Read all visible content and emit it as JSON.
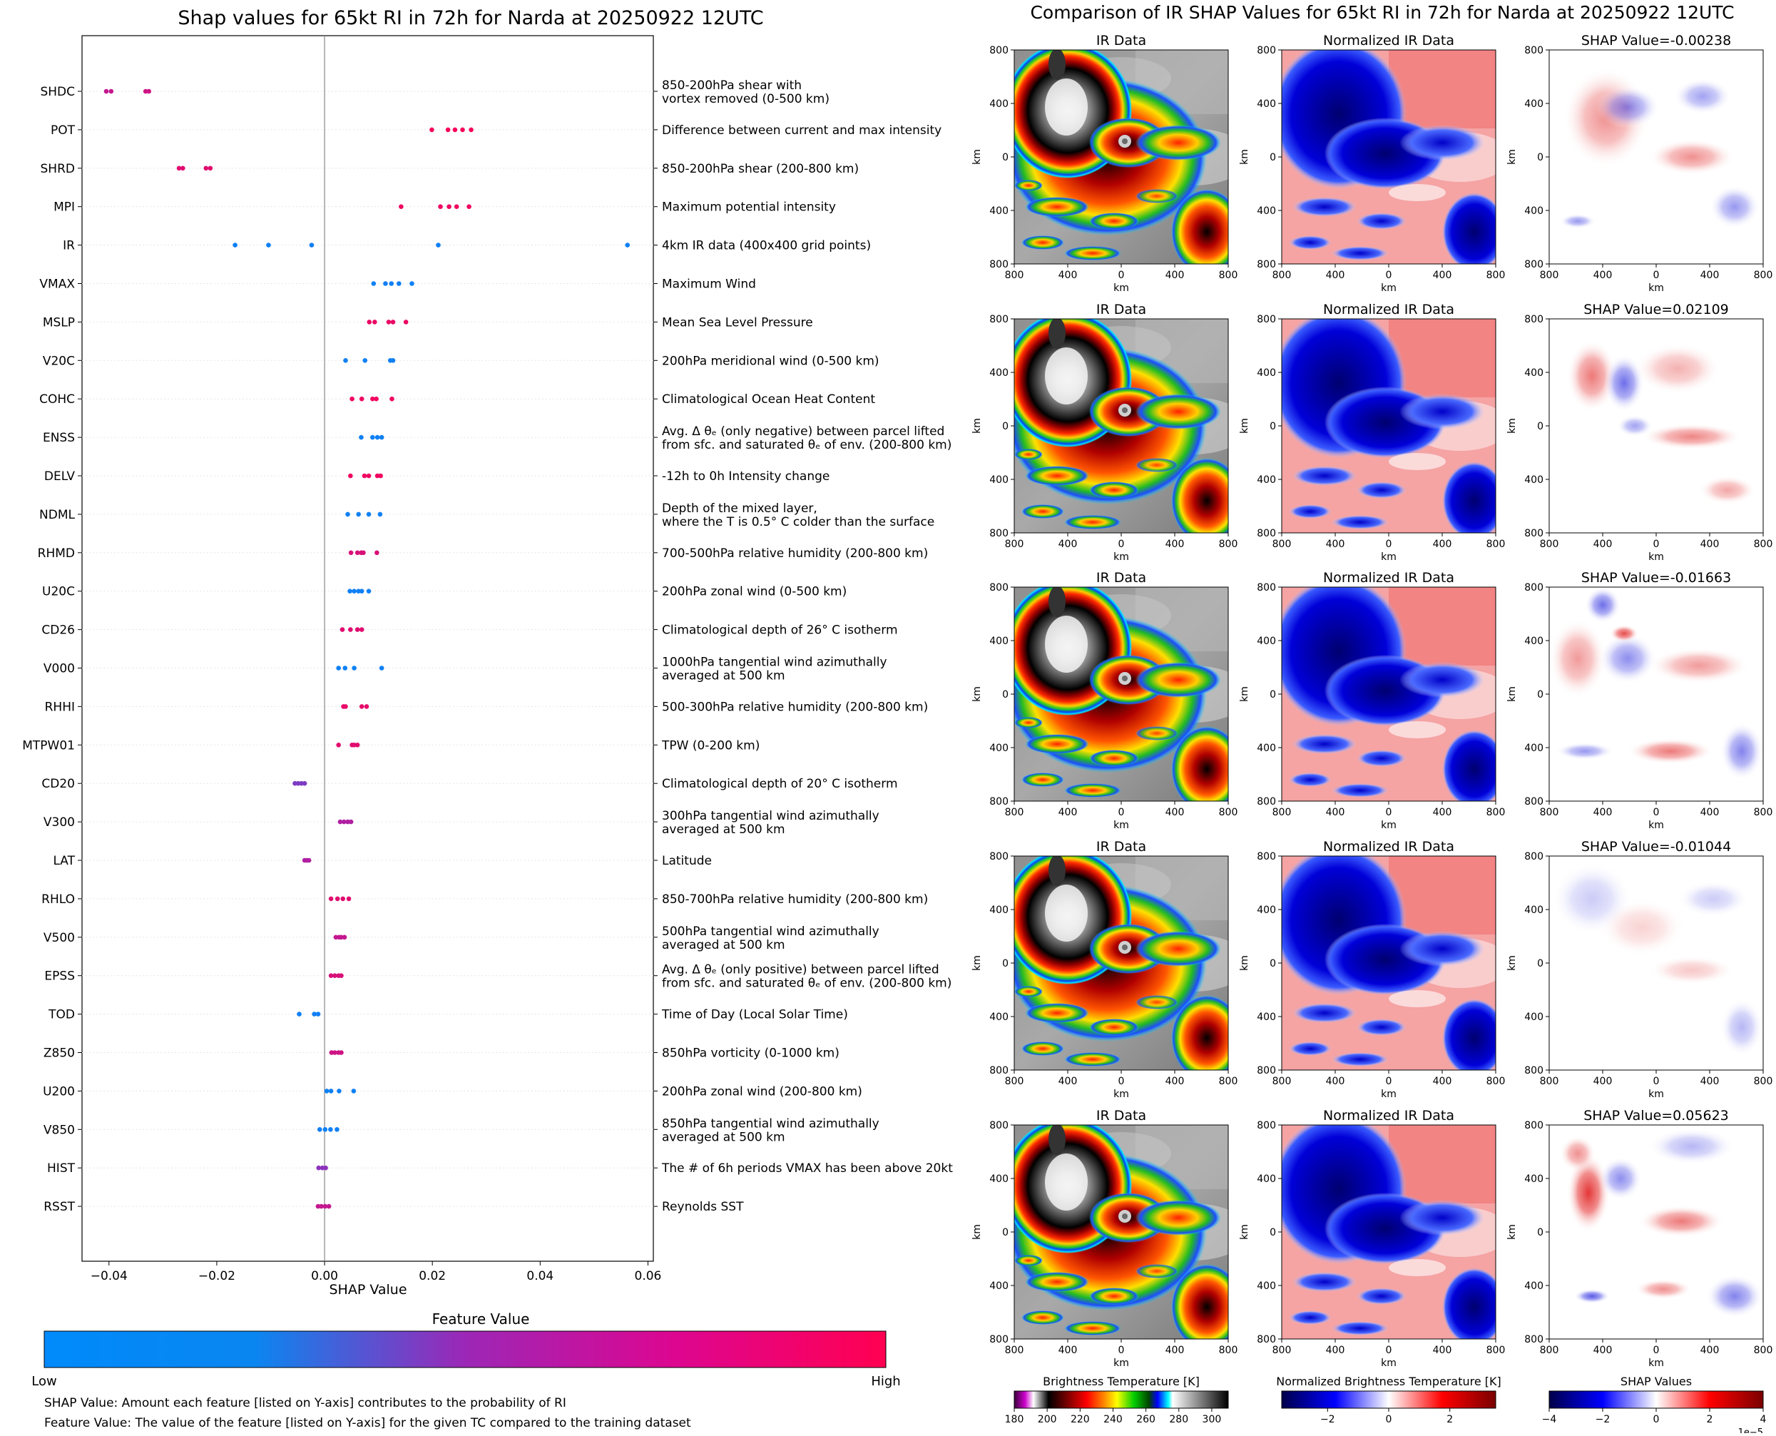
{
  "colors": {
    "low": "#008afb",
    "mid": "#9c27b6",
    "high": "#ff0051"
  },
  "chart_data": [
    {
      "type": "scatter",
      "title": "Shap values for 65kt RI in 72h for Narda at 20250922 12UTC",
      "xlabel": "SHAP Value",
      "xlim": [
        -0.045,
        0.061
      ],
      "xticks": [
        -0.04,
        -0.02,
        0.0,
        0.02,
        0.04,
        0.06
      ],
      "xtick_labels": [
        "−0.04",
        "−0.02",
        "0.00",
        "0.02",
        "0.04",
        "0.06"
      ],
      "features": [
        {
          "name": "SHDC",
          "desc": [
            "850-200hPa shear with",
            "vortex removed (0-500 km)"
          ],
          "shap": [
            -0.0405,
            -0.0396,
            -0.0332,
            -0.0326
          ],
          "fv": [
            0.7,
            0.7,
            0.75,
            0.75
          ]
        },
        {
          "name": "POT",
          "desc": [
            "Difference between current and max intensity"
          ],
          "shap": [
            0.0199,
            0.0229,
            0.0242,
            0.0256,
            0.0272
          ],
          "fv": [
            0.95,
            0.95,
            0.95,
            0.95,
            0.95
          ]
        },
        {
          "name": "SHRD",
          "desc": [
            "850-200hPa shear (200-800 km)"
          ],
          "shap": [
            -0.027,
            -0.0263,
            -0.022,
            -0.0212
          ],
          "fv": [
            0.85,
            0.85,
            0.85,
            0.85
          ]
        },
        {
          "name": "MPI",
          "desc": [
            "Maximum potential intensity"
          ],
          "shap": [
            0.0142,
            0.0215,
            0.0231,
            0.0245,
            0.0268
          ],
          "fv": [
            0.92,
            0.92,
            0.92,
            0.92,
            0.92
          ]
        },
        {
          "name": "IR",
          "desc": [
            "4km IR data (400x400 grid points)"
          ],
          "shap": [
            -0.0166,
            -0.0104,
            -0.0024,
            0.0211,
            0.0562
          ],
          "fv": [
            0.05,
            0.05,
            0.05,
            0.05,
            0.05
          ]
        },
        {
          "name": "VMAX",
          "desc": [
            "Maximum Wind"
          ],
          "shap": [
            0.0091,
            0.0113,
            0.0124,
            0.0138,
            0.0162
          ],
          "fv": [
            0.05,
            0.05,
            0.05,
            0.05,
            0.05
          ]
        },
        {
          "name": "MSLP",
          "desc": [
            "Mean Sea Level Pressure"
          ],
          "shap": [
            0.0083,
            0.0093,
            0.0119,
            0.0127,
            0.0151
          ],
          "fv": [
            0.9,
            0.9,
            0.9,
            0.9,
            0.9
          ]
        },
        {
          "name": "V20C",
          "desc": [
            "200hPa meridional wind (0-500 km)"
          ],
          "shap": [
            0.0039,
            0.0075,
            0.0122,
            0.0127
          ],
          "fv": [
            0.05,
            0.05,
            0.05,
            0.05
          ]
        },
        {
          "name": "COHC",
          "desc": [
            "Climatological Ocean Heat Content"
          ],
          "shap": [
            0.0051,
            0.0069,
            0.0089,
            0.0096,
            0.0125
          ],
          "fv": [
            0.92,
            0.92,
            0.92,
            0.92,
            0.92
          ]
        },
        {
          "name": "ENSS",
          "desc": [
            "Avg. Δ θₑ (only negative) between parcel lifted",
            "from sfc. and saturated θₑ of env. (200-800 km)"
          ],
          "shap": [
            0.0068,
            0.0089,
            0.0098,
            0.0106
          ],
          "fv": [
            0.05,
            0.05,
            0.05,
            0.05
          ]
        },
        {
          "name": "DELV",
          "desc": [
            "-12h to 0h Intensity change"
          ],
          "shap": [
            0.0048,
            0.0074,
            0.0082,
            0.0098,
            0.0104
          ],
          "fv": [
            0.92,
            0.92,
            0.92,
            0.92,
            0.92
          ]
        },
        {
          "name": "NDML",
          "desc": [
            "Depth of the mixed layer,",
            "where the T is 0.5° C colder than the surface"
          ],
          "shap": [
            0.0043,
            0.0063,
            0.0082,
            0.0103
          ],
          "fv": [
            0.05,
            0.05,
            0.05,
            0.05
          ]
        },
        {
          "name": "RHMD",
          "desc": [
            "700-500hPa relative humidity (200-800 km)"
          ],
          "shap": [
            0.0049,
            0.0061,
            0.0068,
            0.0072,
            0.0097
          ],
          "fv": [
            0.8,
            0.8,
            0.8,
            0.8,
            0.8
          ]
        },
        {
          "name": "U20C",
          "desc": [
            "200hPa zonal wind (0-500 km)"
          ],
          "shap": [
            0.0047,
            0.0055,
            0.0063,
            0.0069,
            0.0082
          ],
          "fv": [
            0.05,
            0.05,
            0.05,
            0.05,
            0.05
          ]
        },
        {
          "name": "CD26",
          "desc": [
            "Climatological depth of 26° C isotherm"
          ],
          "shap": [
            0.0033,
            0.0048,
            0.0061,
            0.0069
          ],
          "fv": [
            0.85,
            0.85,
            0.85,
            0.85
          ]
        },
        {
          "name": "V000",
          "desc": [
            "1000hPa tangential wind azimuthally",
            "averaged at 500 km"
          ],
          "shap": [
            0.0026,
            0.0038,
            0.0055,
            0.0106
          ],
          "fv": [
            0.05,
            0.05,
            0.05,
            0.05
          ]
        },
        {
          "name": "RHHI",
          "desc": [
            "500-300hPa relative humidity (200-800 km)"
          ],
          "shap": [
            0.0035,
            0.0039,
            0.0069,
            0.0078
          ],
          "fv": [
            0.88,
            0.88,
            0.88,
            0.88
          ]
        },
        {
          "name": "MTPW01",
          "desc": [
            "TPW (0-200 km)"
          ],
          "shap": [
            0.0026,
            0.0051,
            0.0055,
            0.0061
          ],
          "fv": [
            0.85,
            0.85,
            0.85,
            0.85
          ]
        },
        {
          "name": "CD20",
          "desc": [
            "Climatological depth of 20° C isotherm"
          ],
          "shap": [
            -0.0055,
            -0.0049,
            -0.0043,
            -0.0037
          ],
          "fv": [
            0.4,
            0.4,
            0.4,
            0.4
          ]
        },
        {
          "name": "V300",
          "desc": [
            "300hPa tangential wind azimuthally",
            "averaged at 500 km"
          ],
          "shap": [
            0.0029,
            0.0036,
            0.0043,
            0.0049
          ],
          "fv": [
            0.6,
            0.6,
            0.6,
            0.6
          ]
        },
        {
          "name": "LAT",
          "desc": [
            "Latitude"
          ],
          "shap": [
            -0.0037,
            -0.0033,
            -0.0029
          ],
          "fv": [
            0.6,
            0.6,
            0.6
          ]
        },
        {
          "name": "RHLO",
          "desc": [
            "850-700hPa relative humidity (200-800 km)"
          ],
          "shap": [
            0.0012,
            0.0024,
            0.0034,
            0.0045
          ],
          "fv": [
            0.85,
            0.85,
            0.85,
            0.85
          ]
        },
        {
          "name": "V500",
          "desc": [
            "500hPa tangential wind azimuthally",
            "averaged at 500 km"
          ],
          "shap": [
            0.0021,
            0.0027,
            0.0031,
            0.0037
          ],
          "fv": [
            0.7,
            0.7,
            0.7,
            0.7
          ]
        },
        {
          "name": "EPSS",
          "desc": [
            "Avg. Δ θₑ (only positive) between parcel lifted",
            "from sfc. and saturated θₑ of env. (200-800 km)"
          ],
          "shap": [
            0.0012,
            0.0019,
            0.0026,
            0.0031
          ],
          "fv": [
            0.8,
            0.8,
            0.8,
            0.8
          ]
        },
        {
          "name": "TOD",
          "desc": [
            "Time of Day (Local Solar Time)"
          ],
          "shap": [
            -0.0047,
            -0.0019,
            -0.0012
          ],
          "fv": [
            0.05,
            0.05,
            0.05
          ]
        },
        {
          "name": "Z850",
          "desc": [
            "850hPa vorticity (0-1000 km)"
          ],
          "shap": [
            0.0013,
            0.0019,
            0.0026,
            0.0031
          ],
          "fv": [
            0.75,
            0.75,
            0.75,
            0.75
          ]
        },
        {
          "name": "U200",
          "desc": [
            "200hPa zonal wind (200-800 km)"
          ],
          "shap": [
            0.0004,
            0.0012,
            0.0027,
            0.0054
          ],
          "fv": [
            0.05,
            0.05,
            0.05,
            0.05
          ]
        },
        {
          "name": "V850",
          "desc": [
            "850hPa tangential wind azimuthally",
            "averaged at 500 km"
          ],
          "shap": [
            -0.0009,
            0.0001,
            0.0011,
            0.0023
          ],
          "fv": [
            0.05,
            0.05,
            0.05,
            0.05
          ]
        },
        {
          "name": "HIST",
          "desc": [
            "The # of 6h periods VMAX has been above 20kt"
          ],
          "shap": [
            -0.0011,
            -0.0004,
            0.0002
          ],
          "fv": [
            0.45,
            0.45,
            0.45
          ]
        },
        {
          "name": "RSST",
          "desc": [
            "Reynolds SST"
          ],
          "shap": [
            -0.0012,
            -0.0006,
            0.0001,
            0.0008
          ],
          "fv": [
            0.7,
            0.7,
            0.7,
            0.7
          ]
        }
      ]
    },
    {
      "type": "heatmap",
      "title": "Comparison of IR SHAP Values for 65kt RI in 72h for Narda at 20250922 12UTC",
      "panel_titles": [
        "IR Data",
        "Normalized IR Data"
      ],
      "shap_titles": [
        "SHAP Value=-0.00238",
        "SHAP Value=0.02109",
        "SHAP Value=-0.01663",
        "SHAP Value=-0.01044",
        "SHAP Value=0.05623"
      ],
      "axis_label": "km",
      "axis_ticks": [
        "800",
        "400",
        "0",
        "400",
        "800"
      ],
      "colorbars": [
        {
          "label": "Brightness Temperature [K]",
          "ticks": [
            "180",
            "200",
            "220",
            "240",
            "260",
            "280",
            "300"
          ],
          "range": [
            180,
            310
          ]
        },
        {
          "label": "Normalized Brightness Temperature [K]",
          "ticks": [
            "−2",
            "0",
            "2"
          ],
          "range": [
            -3.5,
            3.5
          ]
        },
        {
          "label": "SHAP Values",
          "ticks": [
            "−4",
            "−2",
            "0",
            "2",
            "4"
          ],
          "range": [
            -4,
            4
          ],
          "offset": "1e−5"
        }
      ]
    }
  ],
  "legend": {
    "feature_value_label": "Feature Value",
    "low": "Low",
    "high": "High",
    "note_shap": "SHAP Value: Amount each feature [listed on Y-axis] contributes to the probability of RI",
    "note_feature": "Feature Value: The value of the feature [listed on Y-axis] for the given TC compared to the training dataset"
  }
}
